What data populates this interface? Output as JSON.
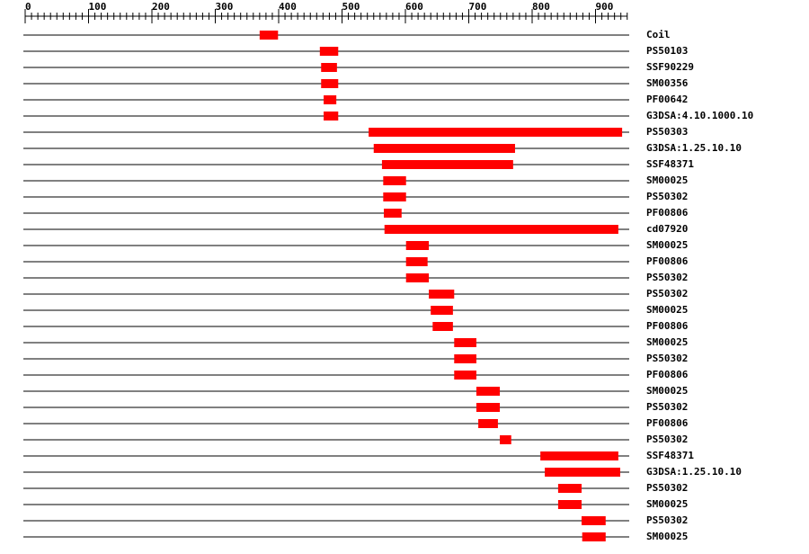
{
  "chart_data": {
    "type": "range",
    "xlim": [
      0,
      950
    ],
    "xticks": [
      0,
      100,
      200,
      300,
      400,
      500,
      600,
      700,
      800,
      900
    ],
    "minor_tick_step": 10,
    "color": "#ff0000",
    "categories": [
      "Coil",
      "PS50103",
      "SSF90229",
      "SM00356",
      "PF00642",
      "G3DSA:4.10.1000.10",
      "PS50303",
      "G3DSA:1.25.10.10",
      "SSF48371",
      "SM00025",
      "PS50302",
      "PF00806",
      "cd07920",
      "SM00025",
      "PF00806",
      "PS50302",
      "PS50302",
      "SM00025",
      "PF00806",
      "SM00025",
      "PS50302",
      "PF00806",
      "SM00025",
      "PS50302",
      "PF00806",
      "PS50302",
      "SSF48371",
      "G3DSA:1.25.10.10",
      "PS50302",
      "SM00025",
      "PS50302",
      "SM00025"
    ],
    "starts": [
      370,
      465,
      467,
      467,
      471,
      471,
      542,
      550,
      563,
      565,
      565,
      566,
      567,
      601,
      601,
      601,
      637,
      640,
      643,
      677,
      677,
      677,
      712,
      712,
      715,
      749,
      813,
      820,
      841,
      841,
      878,
      879
    ],
    "ends": [
      399,
      494,
      492,
      494,
      491,
      494,
      942,
      773,
      770,
      601,
      601,
      594,
      936,
      637,
      635,
      637,
      677,
      675,
      675,
      712,
      712,
      712,
      749,
      749,
      746,
      767,
      936,
      939,
      878,
      878,
      916,
      916
    ]
  }
}
